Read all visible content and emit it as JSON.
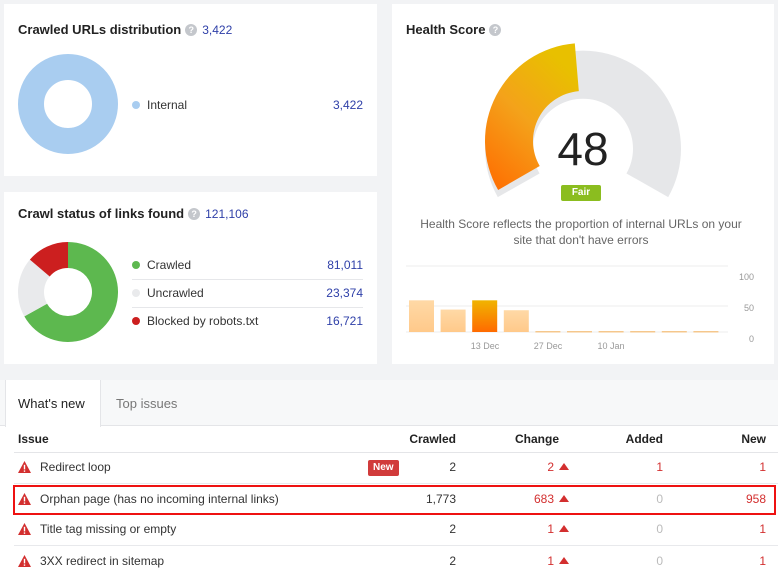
{
  "crawled_distribution": {
    "title": "Crawled URLs distribution",
    "help": "?",
    "count": "3,422",
    "legend": [
      {
        "label": "Internal",
        "value": "3,422",
        "color": "#a9cdf0"
      }
    ],
    "chart_data": {
      "type": "pie",
      "title": "Crawled URLs distribution",
      "categories": [
        "Internal"
      ],
      "values": [
        3422
      ],
      "colors": [
        "#a9cdf0"
      ]
    }
  },
  "crawl_status": {
    "title": "Crawl status of links found",
    "help": "?",
    "count": "121,106",
    "legend": [
      {
        "label": "Crawled",
        "value": "81,011",
        "color": "#5db84f"
      },
      {
        "label": "Uncrawled",
        "value": "23,374",
        "color": "#e9eaec"
      },
      {
        "label": "Blocked by robots.txt",
        "value": "16,721",
        "color": "#cc1f1f"
      }
    ],
    "chart_data": {
      "type": "pie",
      "title": "Crawl status of links found",
      "categories": [
        "Crawled",
        "Uncrawled",
        "Blocked by robots.txt"
      ],
      "values": [
        81011,
        23374,
        16721
      ],
      "colors": [
        "#5db84f",
        "#e9eaec",
        "#cc1f1f"
      ]
    }
  },
  "health": {
    "title": "Health Score",
    "help": "?",
    "score": "48",
    "score_value": 48,
    "status": "Fair",
    "description": "Health Score reflects the proportion of internal URLs on your site that don't have errors",
    "chart_data": {
      "type": "bar",
      "title": "Health Score history",
      "values": [
        48,
        34,
        48,
        33,
        0,
        0,
        0,
        0,
        0,
        0
      ],
      "highlight_index": 2,
      "ylim": [
        0,
        100
      ],
      "y_ticks": [
        "100",
        "50",
        "0"
      ],
      "x_ticks": [
        "13 Dec",
        "27 Dec",
        "10 Jan"
      ]
    }
  },
  "issues": {
    "tabs": [
      {
        "label": "What's new",
        "active": true
      },
      {
        "label": "Top issues",
        "active": false
      }
    ],
    "columns": {
      "issue": "Issue",
      "crawled": "Crawled",
      "change": "Change",
      "added": "Added",
      "new": "New"
    },
    "rows": [
      {
        "issue": "Redirect loop",
        "badge": "New",
        "crawled": "2",
        "change": "2",
        "added": "1",
        "new": "1",
        "highlighted": false
      },
      {
        "issue": "Orphan page (has no incoming internal links)",
        "badge": "",
        "crawled": "1,773",
        "change": "683",
        "added": "0",
        "new": "958",
        "highlighted": true
      },
      {
        "issue": "Title tag missing or empty",
        "badge": "",
        "crawled": "2",
        "change": "1",
        "added": "0",
        "new": "1",
        "highlighted": false
      },
      {
        "issue": "3XX redirect in sitemap",
        "badge": "",
        "crawled": "2",
        "change": "1",
        "added": "0",
        "new": "1",
        "highlighted": false
      }
    ]
  },
  "colors": {
    "accent_link": "#2e3fa8",
    "error_red": "#d32f2f",
    "fair_green": "#8bbd1f"
  }
}
